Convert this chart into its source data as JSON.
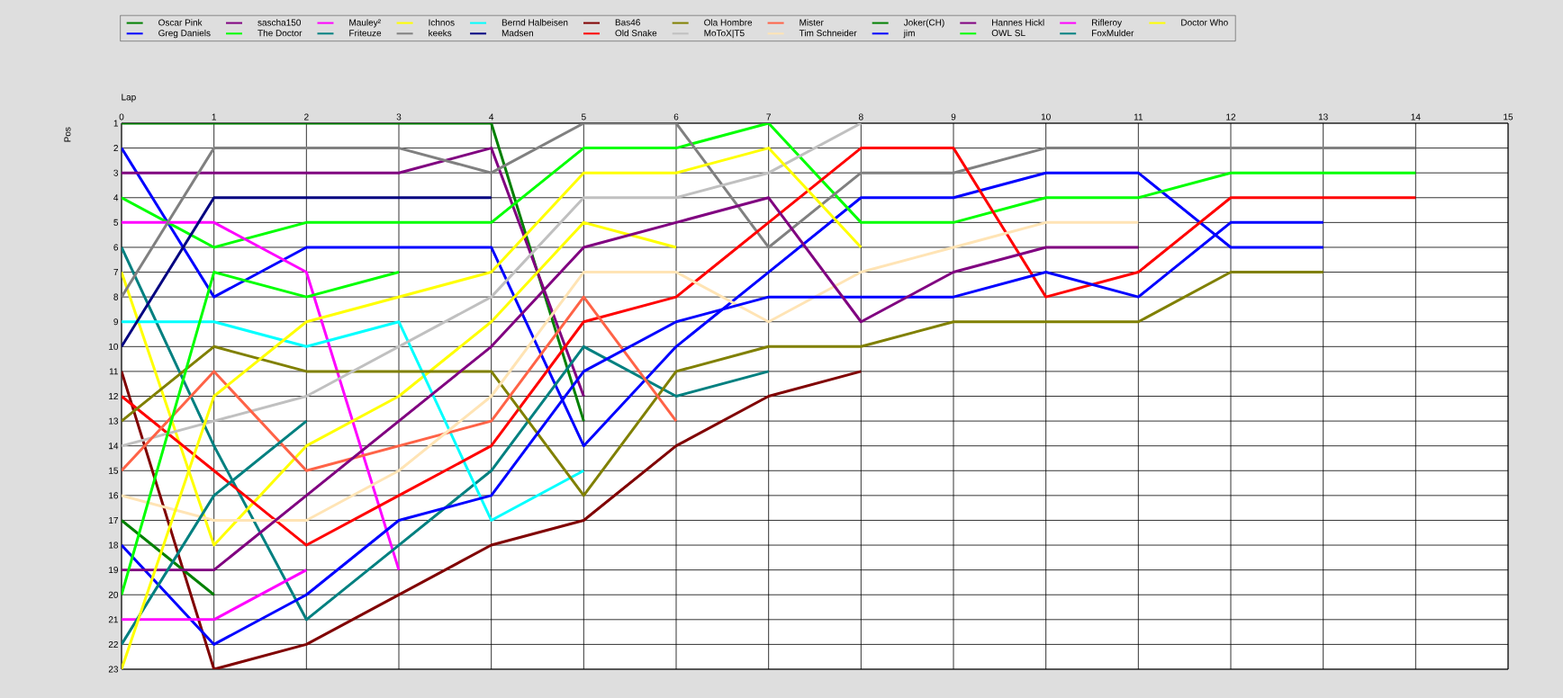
{
  "chart_data": {
    "type": "line",
    "xlabel": "Lap",
    "ylabel": "Pos",
    "x": [
      0,
      1,
      2,
      3,
      4,
      5,
      6,
      7,
      8,
      9,
      10,
      11,
      12,
      13,
      14
    ],
    "xlim": [
      0,
      15
    ],
    "xticks": [
      0,
      1,
      2,
      3,
      4,
      5,
      6,
      7,
      8,
      9,
      10,
      11,
      12,
      13,
      14,
      15
    ],
    "ylim": [
      23,
      1
    ],
    "yticks": [
      1,
      2,
      3,
      4,
      5,
      6,
      7,
      8,
      9,
      10,
      11,
      12,
      13,
      14,
      15,
      16,
      17,
      18,
      19,
      20,
      21,
      22,
      23
    ],
    "grid": true,
    "legend": "top",
    "marker": "none",
    "line_style": "solid",
    "series": [
      {
        "name": "Oscar Pink",
        "color": "#008000",
        "values": [
          1,
          1,
          1,
          1,
          1,
          13,
          null,
          null,
          null,
          null,
          null,
          null,
          null,
          null,
          null
        ]
      },
      {
        "name": "Greg Daniels",
        "color": "#0000ff",
        "values": [
          2,
          8,
          6,
          6,
          6,
          14,
          10,
          7,
          4,
          4,
          3,
          3,
          6,
          6,
          null
        ]
      },
      {
        "name": "sascha150",
        "color": "#800080",
        "values": [
          3,
          3,
          3,
          3,
          2,
          12,
          null,
          null,
          null,
          null,
          null,
          null,
          null,
          null,
          null
        ]
      },
      {
        "name": "The Doctor",
        "color": "#00ff00",
        "values": [
          4,
          6,
          5,
          5,
          5,
          2,
          2,
          1,
          5,
          5,
          4,
          4,
          3,
          3,
          3
        ]
      },
      {
        "name": "Mauley²",
        "color": "#ff00ff",
        "values": [
          5,
          5,
          7,
          19,
          null,
          null,
          null,
          null,
          null,
          null,
          null,
          null,
          null,
          null,
          null
        ]
      },
      {
        "name": "Friteuze",
        "color": "#008080",
        "values": [
          6,
          14,
          21,
          18,
          15,
          10,
          12,
          11,
          null,
          null,
          null,
          null,
          null,
          null,
          null
        ]
      },
      {
        "name": "Ichnos",
        "color": "#ffff00",
        "values": [
          7,
          18,
          14,
          12,
          9,
          5,
          6,
          null,
          null,
          null,
          null,
          null,
          null,
          null,
          null
        ]
      },
      {
        "name": "keeks",
        "color": "#808080",
        "values": [
          8,
          2,
          2,
          2,
          3,
          1,
          1,
          6,
          3,
          3,
          2,
          2,
          2,
          2,
          2
        ]
      },
      {
        "name": "Bernd Halbeisen",
        "color": "#00ffff",
        "values": [
          9,
          9,
          10,
          9,
          17,
          15,
          null,
          null,
          null,
          null,
          null,
          null,
          null,
          null,
          null
        ]
      },
      {
        "name": "Madsen",
        "color": "#000080",
        "values": [
          10,
          4,
          4,
          4,
          4,
          null,
          null,
          null,
          null,
          null,
          null,
          null,
          null,
          null,
          null
        ]
      },
      {
        "name": "Bas46",
        "color": "#800000",
        "values": [
          11,
          23,
          22,
          20,
          18,
          17,
          14,
          12,
          11,
          null,
          null,
          null,
          null,
          null,
          null
        ]
      },
      {
        "name": "Old Snake",
        "color": "#ff0000",
        "values": [
          12,
          15,
          18,
          16,
          14,
          9,
          8,
          5,
          2,
          2,
          8,
          7,
          4,
          4,
          4
        ]
      },
      {
        "name": "Ola Hombre",
        "color": "#808000",
        "values": [
          13,
          10,
          11,
          11,
          11,
          16,
          11,
          10,
          10,
          9,
          9,
          9,
          7,
          7,
          null
        ]
      },
      {
        "name": "MoToX|T5",
        "color": "#c0c0c0",
        "values": [
          14,
          13,
          12,
          10,
          8,
          4,
          4,
          3,
          1,
          null,
          null,
          null,
          null,
          null,
          null
        ]
      },
      {
        "name": "Mister",
        "color": "#ff6347",
        "values": [
          15,
          11,
          15,
          14,
          13,
          8,
          13,
          null,
          null,
          null,
          null,
          null,
          null,
          null,
          null
        ]
      },
      {
        "name": "Tim Schneider",
        "color": "#ffe4b5",
        "values": [
          16,
          17,
          17,
          15,
          12,
          7,
          7,
          9,
          7,
          6,
          5,
          5,
          null,
          null,
          null
        ]
      },
      {
        "name": "Joker(CH)",
        "color": "#008000",
        "values": [
          17,
          20,
          null,
          null,
          null,
          null,
          null,
          null,
          null,
          null,
          null,
          null,
          null,
          null,
          null
        ]
      },
      {
        "name": "jim",
        "color": "#0000ff",
        "values": [
          18,
          22,
          20,
          17,
          16,
          11,
          9,
          8,
          8,
          8,
          7,
          8,
          5,
          5,
          null
        ]
      },
      {
        "name": "Hannes Hickl",
        "color": "#800080",
        "values": [
          19,
          19,
          16,
          13,
          10,
          6,
          5,
          4,
          9,
          7,
          6,
          6,
          null,
          null,
          null
        ]
      },
      {
        "name": "OWL SL",
        "color": "#00ff00",
        "values": [
          20,
          7,
          8,
          7,
          null,
          null,
          null,
          null,
          null,
          null,
          null,
          null,
          null,
          null,
          null
        ]
      },
      {
        "name": "Rifleroy",
        "color": "#ff00ff",
        "values": [
          21,
          21,
          19,
          null,
          null,
          null,
          null,
          null,
          null,
          null,
          null,
          null,
          null,
          null,
          null
        ]
      },
      {
        "name": "FoxMulder",
        "color": "#008080",
        "values": [
          22,
          16,
          13,
          null,
          null,
          null,
          null,
          null,
          null,
          null,
          null,
          null,
          null,
          null,
          null
        ]
      },
      {
        "name": "Doctor Who",
        "color": "#ffff00",
        "values": [
          23,
          12,
          9,
          8,
          7,
          3,
          3,
          2,
          6,
          null,
          null,
          null,
          null,
          null,
          null
        ]
      }
    ]
  }
}
